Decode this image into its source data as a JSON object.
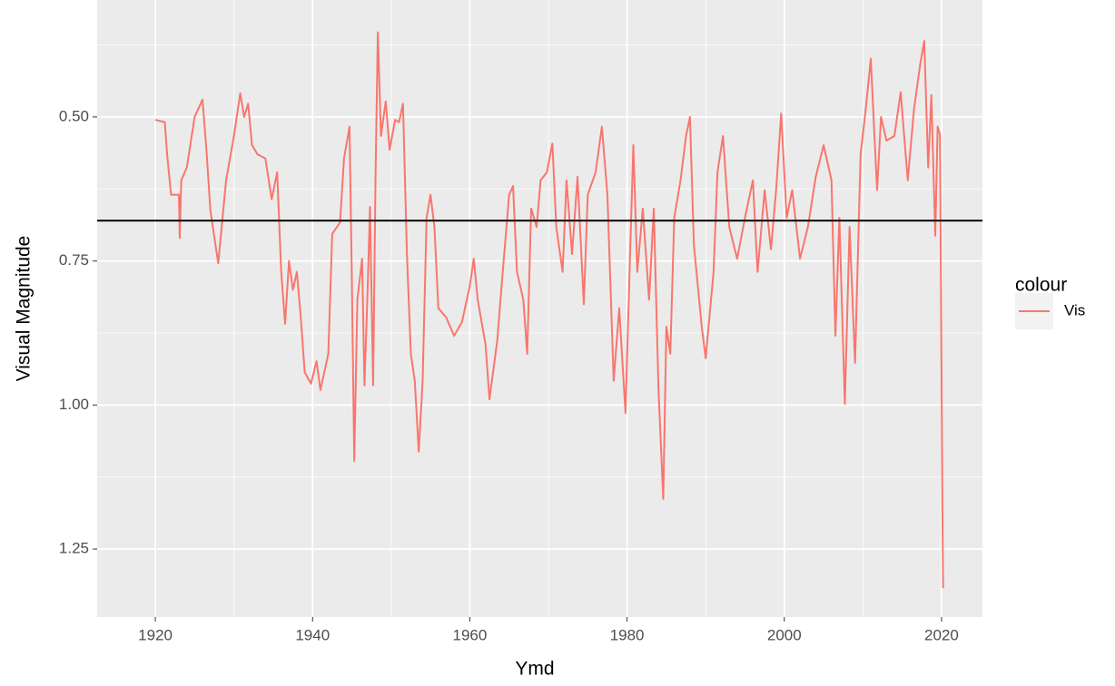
{
  "chart_data": {
    "type": "line",
    "x_label": "Ymd",
    "y_label": "Visual Magnitude",
    "xlim": [
      1912.6,
      2025.2
    ],
    "ylim": [
      0.297,
      1.368
    ],
    "y_reversed": true,
    "xticks": [
      1920,
      1940,
      1960,
      1980,
      2000,
      2020
    ],
    "xminor": [
      1930,
      1950,
      1970,
      1990,
      2010
    ],
    "yticks": [
      {
        "value": 0.5,
        "label": "0.50"
      },
      {
        "value": 0.75,
        "label": "0.75"
      },
      {
        "value": 1.0,
        "label": "1.00"
      },
      {
        "value": 1.25,
        "label": "1.25"
      }
    ],
    "yminor": [
      0.375,
      0.625,
      0.875,
      1.125
    ],
    "grid": true,
    "hline": 0.68,
    "hline_color": "#000000",
    "legend_title": "colour",
    "legend_position": "right",
    "x": [
      1920,
      1921.2,
      1921.5,
      1922,
      1923,
      1923.1,
      1923.3,
      1924,
      1925,
      1926,
      1926.5,
      1927,
      1928,
      1929,
      1930,
      1930.8,
      1931.3,
      1931.8,
      1932.3,
      1933,
      1934,
      1934.8,
      1935.5,
      1936,
      1936.5,
      1937,
      1937.5,
      1938,
      1938.5,
      1939,
      1939.8,
      1940.5,
      1941,
      1942,
      1942.5,
      1943.5,
      1944,
      1944.7,
      1945,
      1945.3,
      1945.7,
      1946.3,
      1946.6,
      1947,
      1947.3,
      1947.7,
      1948,
      1948.3,
      1948.7,
      1949.3,
      1949.8,
      1950.5,
      1951,
      1951.5,
      1952,
      1952.5,
      1953,
      1953.5,
      1954,
      1954.5,
      1955,
      1955.5,
      1956,
      1957,
      1958,
      1959,
      1960,
      1960.5,
      1961,
      1962,
      1962.5,
      1963.5,
      1964,
      1965,
      1965.5,
      1966,
      1966.8,
      1967.3,
      1967.8,
      1968.5,
      1969,
      1969.8,
      1970.5,
      1971,
      1971.8,
      1972.3,
      1973,
      1973.7,
      1974.5,
      1975,
      1976,
      1976.8,
      1977.5,
      1978.3,
      1979,
      1979.8,
      1980.3,
      1980.8,
      1981.3,
      1982,
      1982.8,
      1983.4,
      1984,
      1984.6,
      1985,
      1985.5,
      1986,
      1986.8,
      1987.5,
      1988,
      1988.5,
      1989.5,
      1990,
      1991,
      1991.5,
      1992.2,
      1993,
      1994,
      1995,
      1996,
      1996.6,
      1997.5,
      1998.3,
      1999,
      1999.6,
      2000.3,
      2001,
      2002,
      2003,
      2004,
      2005,
      2006,
      2006.5,
      2007,
      2007.7,
      2008.3,
      2009,
      2009.7,
      2010.3,
      2011,
      2011.8,
      2012.3,
      2013,
      2014,
      2014.8,
      2015.7,
      2016.5,
      2017.3,
      2017.8,
      2018.3,
      2018.7,
      2019.2,
      2019.5,
      2019.8,
      2020.1,
      2020.2
    ],
    "series": [
      {
        "name": "Vis",
        "color": "#F8766D",
        "values": [
          0.505,
          0.509,
          0.565,
          0.635,
          0.635,
          0.71,
          0.61,
          0.588,
          0.5,
          0.47,
          0.557,
          0.662,
          0.754,
          0.61,
          0.533,
          0.459,
          0.5,
          0.477,
          0.549,
          0.565,
          0.572,
          0.643,
          0.596,
          0.766,
          0.859,
          0.75,
          0.8,
          0.769,
          0.848,
          0.943,
          0.963,
          0.924,
          0.974,
          0.911,
          0.703,
          0.683,
          0.572,
          0.517,
          0.785,
          1.097,
          0.817,
          0.746,
          0.966,
          0.8,
          0.656,
          0.966,
          0.61,
          0.353,
          0.533,
          0.473,
          0.557,
          0.505,
          0.509,
          0.477,
          0.738,
          0.911,
          0.958,
          1.081,
          0.958,
          0.675,
          0.635,
          0.691,
          0.832,
          0.848,
          0.88,
          0.856,
          0.793,
          0.746,
          0.817,
          0.895,
          0.99,
          0.887,
          0.8,
          0.635,
          0.62,
          0.769,
          0.817,
          0.911,
          0.659,
          0.691,
          0.61,
          0.596,
          0.546,
          0.691,
          0.769,
          0.61,
          0.738,
          0.604,
          0.825,
          0.635,
          0.596,
          0.517,
          0.635,
          0.958,
          0.832,
          1.014,
          0.777,
          0.549,
          0.769,
          0.659,
          0.817,
          0.659,
          0.974,
          1.163,
          0.864,
          0.911,
          0.675,
          0.61,
          0.533,
          0.5,
          0.722,
          0.864,
          0.919,
          0.769,
          0.596,
          0.533,
          0.691,
          0.746,
          0.675,
          0.61,
          0.769,
          0.627,
          0.73,
          0.62,
          0.494,
          0.675,
          0.627,
          0.746,
          0.691,
          0.604,
          0.549,
          0.61,
          0.88,
          0.675,
          0.998,
          0.691,
          0.927,
          0.565,
          0.494,
          0.399,
          0.627,
          0.5,
          0.541,
          0.533,
          0.457,
          0.61,
          0.486,
          0.407,
          0.368,
          0.588,
          0.462,
          0.706,
          0.517,
          0.53,
          1.163,
          1.318
        ]
      }
    ]
  }
}
